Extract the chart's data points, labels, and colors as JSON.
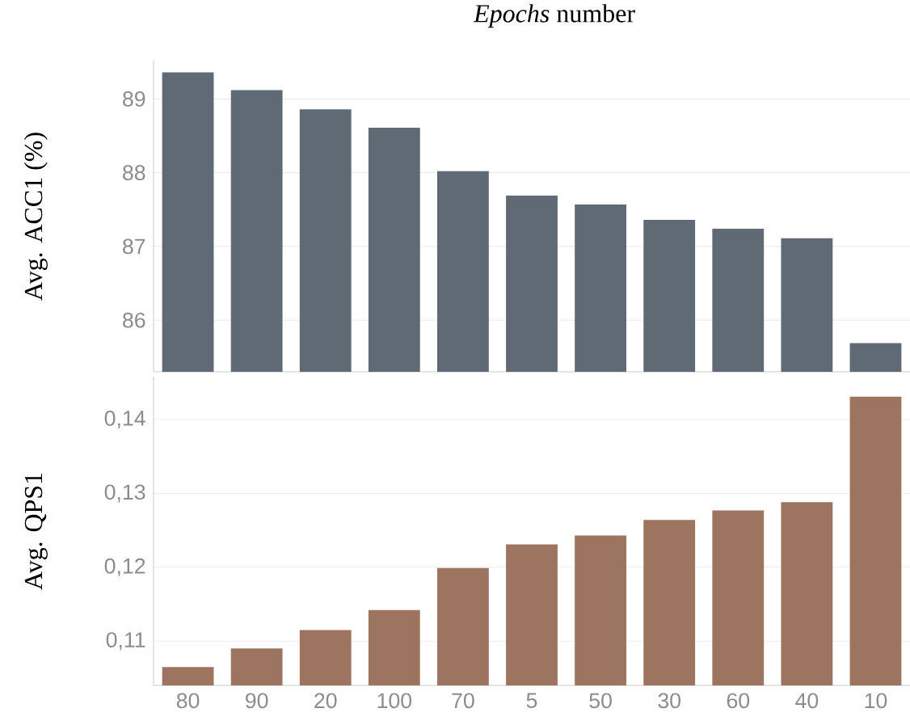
{
  "chart_data": [
    {
      "type": "bar",
      "title": "*Epochs* number",
      "ylabel": "Avg. ACC1 (%)",
      "categories": [
        "80",
        "90",
        "20",
        "100",
        "70",
        "5",
        "50",
        "30",
        "60",
        "40",
        "10"
      ],
      "values": [
        89.36,
        89.12,
        88.86,
        88.61,
        88.02,
        87.69,
        87.57,
        87.36,
        87.24,
        87.11,
        85.69
      ],
      "color": "#5f6a74",
      "ylim": [
        85.3,
        89.52
      ],
      "yticks": [
        86,
        87,
        88,
        89
      ],
      "grid": "y",
      "tick_labels": "y"
    },
    {
      "type": "bar",
      "ylabel": "Avg. QPS1",
      "categories": [
        "80",
        "90",
        "20",
        "100",
        "70",
        "5",
        "50",
        "30",
        "60",
        "40",
        "10"
      ],
      "values": [
        0.1065,
        0.109,
        0.1115,
        0.1142,
        0.1199,
        0.1231,
        0.1243,
        0.1264,
        0.1277,
        0.1288,
        0.1431
      ],
      "color": "#9c7460",
      "ylim": [
        0.104,
        0.1458
      ],
      "yticks": [
        {
          "value": 0.11,
          "label": "0,11"
        },
        {
          "value": 0.12,
          "label": "0,12"
        },
        {
          "value": 0.13,
          "label": "0,13"
        },
        {
          "value": 0.14,
          "label": "0,14"
        }
      ],
      "grid": "y"
    }
  ]
}
